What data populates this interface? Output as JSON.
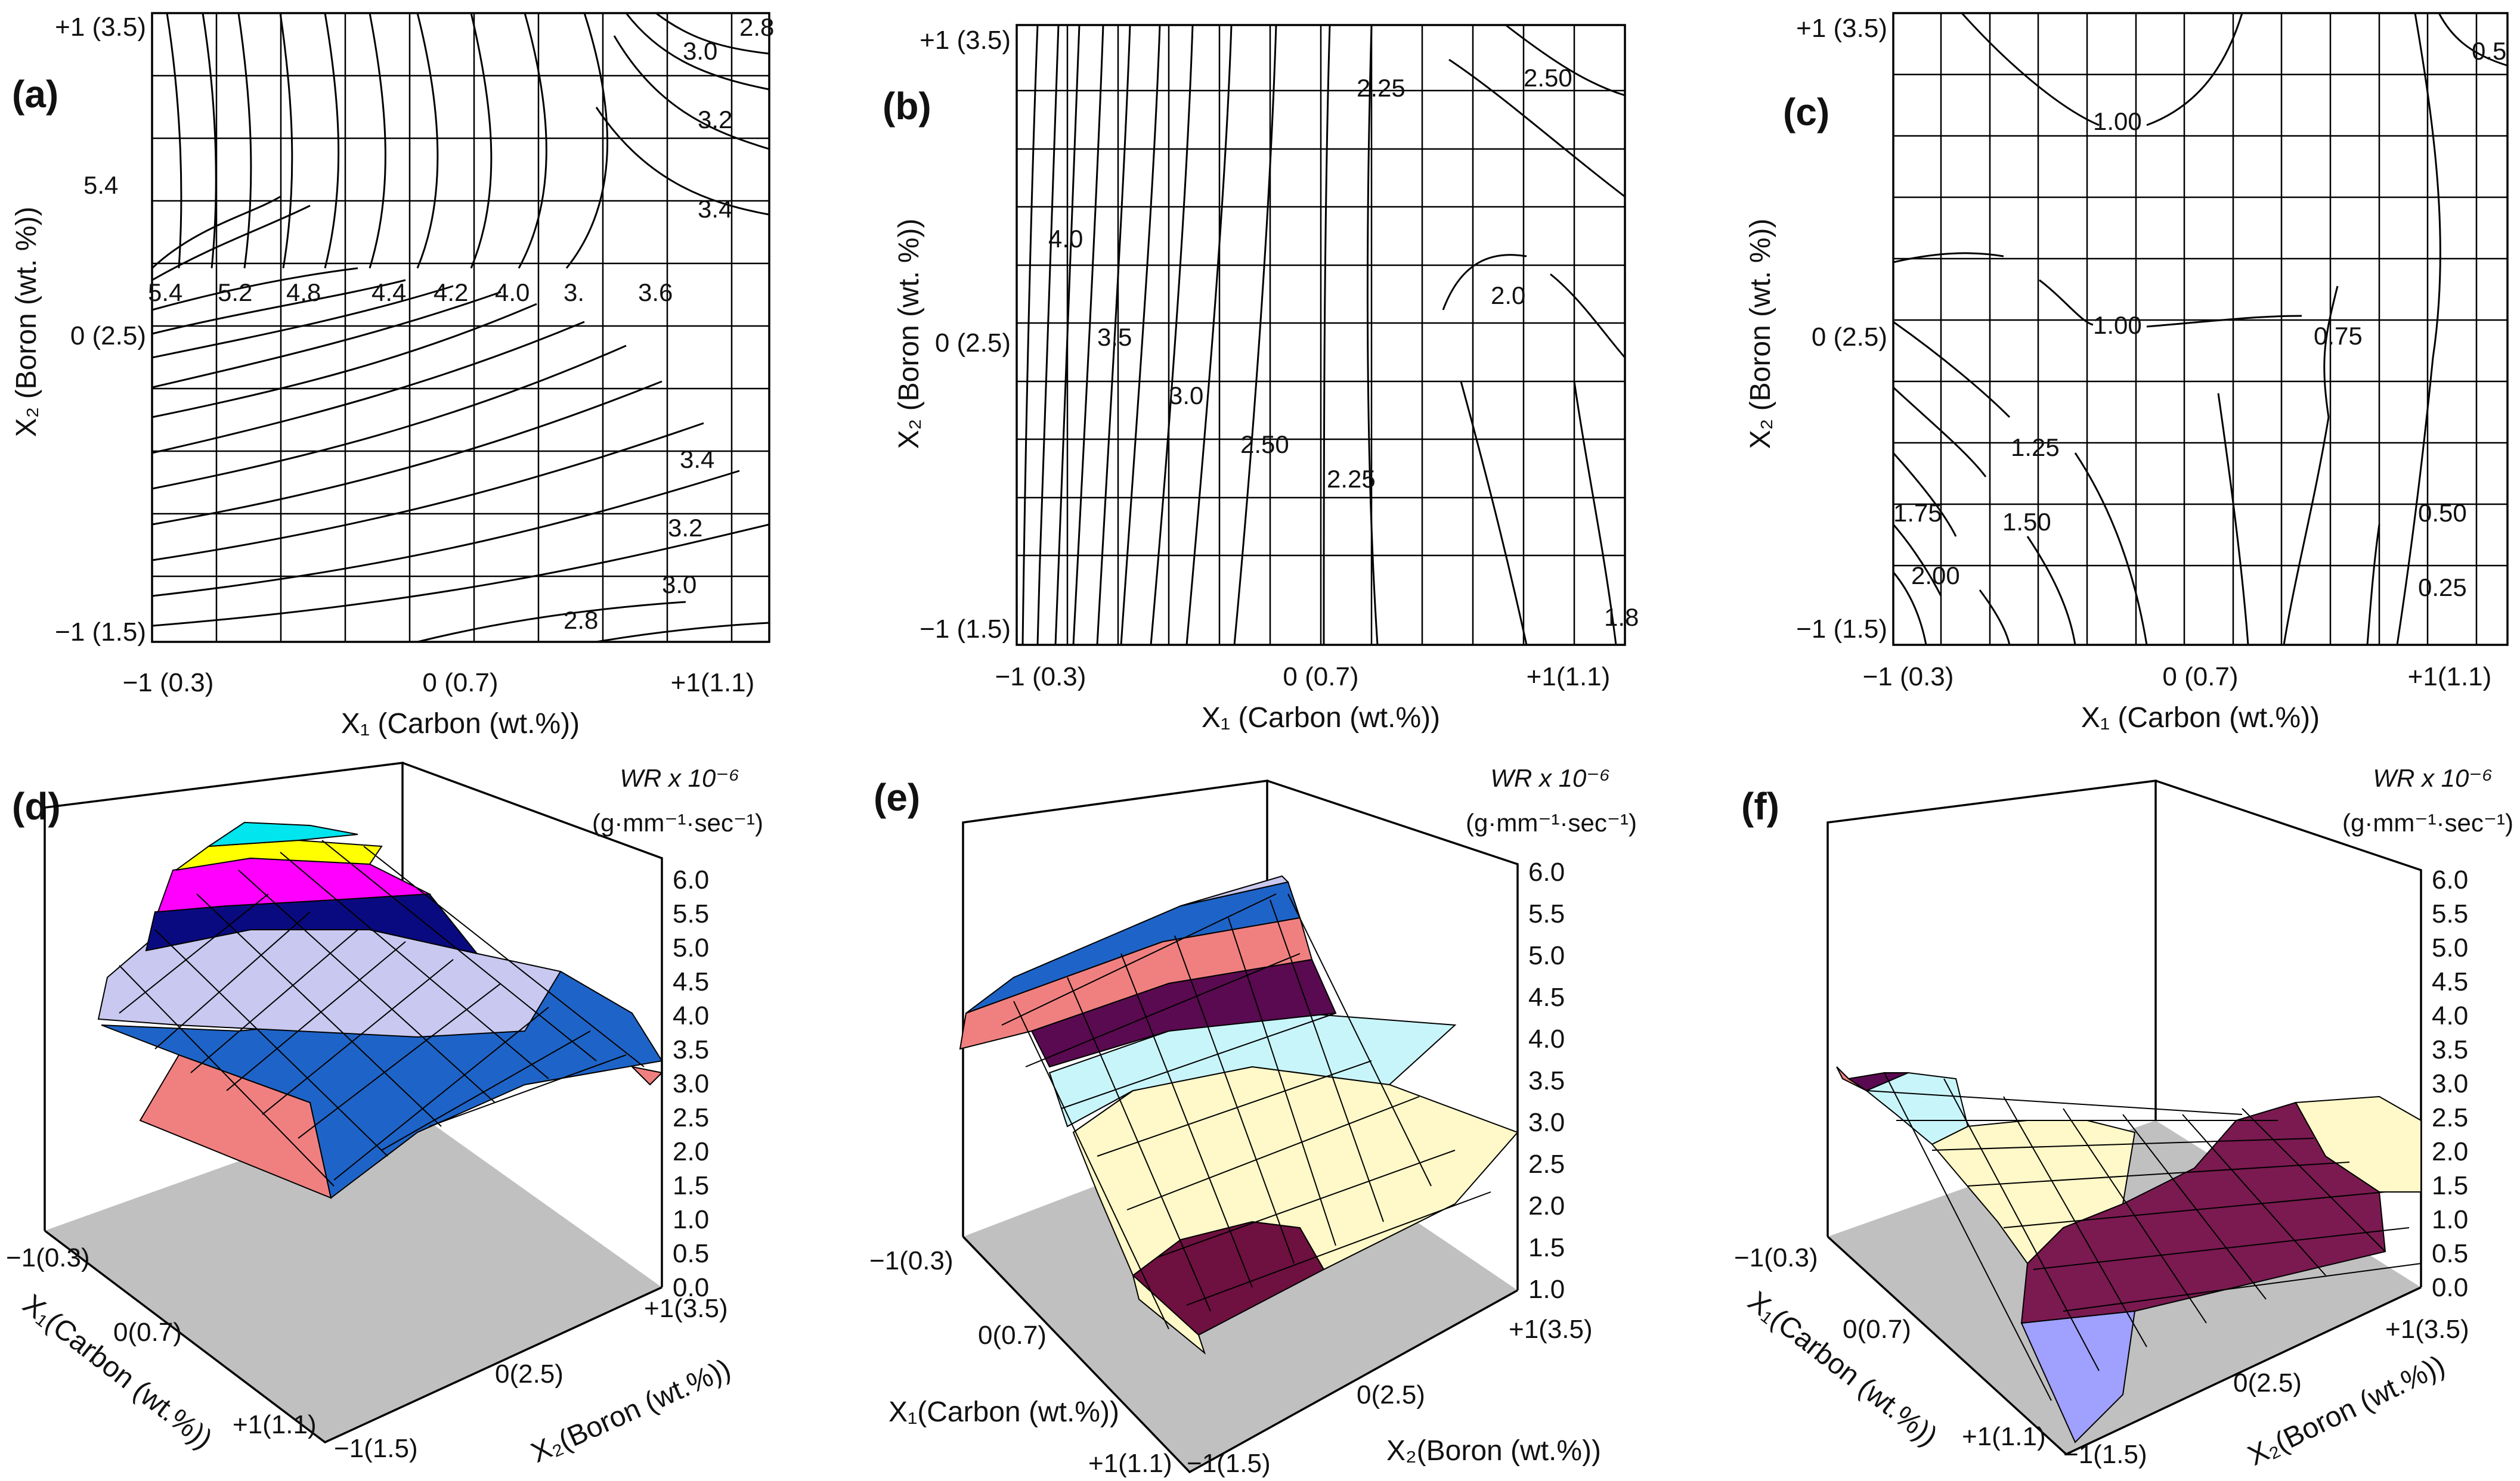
{
  "panels": {
    "a": "(a)",
    "b": "(b)",
    "c": "(c)",
    "d": "(d)",
    "e": "(e)",
    "f": "(f)"
  },
  "contour_axes": {
    "x_title": "X₁ (Carbon (wt.%))",
    "y_title": "X₂ (Boron (wt. %))",
    "x_ticks": [
      "−1 (0.3)",
      "0 (0.7)",
      "+1(1.1)"
    ],
    "y_ticks": [
      "+1 (3.5)",
      "0 (2.5)",
      "−1 (1.5)"
    ]
  },
  "surface_axes": {
    "z_title": "WR x 10⁻⁶",
    "z_unit": "(g·mm⁻¹·sec⁻¹)",
    "x1_title": "X₁(Carbon (wt.%))",
    "x2_title": "X₂(Boron (wt.%))",
    "x1_ticks": [
      "−1(0.3)",
      "0(0.7)",
      "+1(1.1)"
    ],
    "x2_ticks": [
      "−1(1.5)",
      "0(2.5)",
      "+1(3.5)"
    ],
    "z_ticks_d": [
      "0.0",
      "0.5",
      "1.0",
      "1.5",
      "2.0",
      "2.5",
      "3.0",
      "3.5",
      "4.0",
      "4.5",
      "5.0",
      "5.5",
      "6.0"
    ],
    "z_ticks_e": [
      "1.0",
      "1.5",
      "2.0",
      "2.5",
      "3.0",
      "3.5",
      "4.0",
      "4.5",
      "5.0",
      "5.5",
      "6.0"
    ],
    "z_ticks_f": [
      "0.0",
      "0.5",
      "1.0",
      "1.5",
      "2.0",
      "2.5",
      "3.0",
      "3.5",
      "4.0",
      "4.5",
      "5.0",
      "5.5",
      "6.0"
    ]
  },
  "chart_data": [
    {
      "panel": "(a)",
      "type": "contour",
      "xlabel": "X1 (Carbon (wt.%))",
      "ylabel": "X2 (Boron (wt. %))",
      "xlim": [
        -1,
        1
      ],
      "ylim": [
        -1,
        1
      ],
      "contour_labels": [
        {
          "text": "5.4",
          "x": -1.0,
          "y": 0.2
        },
        {
          "text": "5.2",
          "x": -0.73,
          "y": 0.2
        },
        {
          "text": "4.8",
          "x": -0.52,
          "y": 0.2
        },
        {
          "text": "4.4",
          "x": -0.26,
          "y": 0.2
        },
        {
          "text": "4.2",
          "x": -0.1,
          "y": 0.2
        },
        {
          "text": "4.0",
          "x": 0.13,
          "y": 0.2
        },
        {
          "text": "3.",
          "x": 0.36,
          "y": 0.2
        },
        {
          "text": "3.6",
          "x": 0.68,
          "y": 0.2
        },
        {
          "text": "5.4",
          "x": -1.2,
          "y": 0.57
        },
        {
          "text": "3.0",
          "x": 0.85,
          "y": 0.92
        },
        {
          "text": "2.8",
          "x": 1.06,
          "y": 0.99
        },
        {
          "text": "3.2",
          "x": 0.93,
          "y": 0.74
        },
        {
          "text": "3.4",
          "x": 0.93,
          "y": 0.53
        },
        {
          "text": "3.4",
          "x": 0.9,
          "y": -0.38
        },
        {
          "text": "3.2",
          "x": 0.8,
          "y": -0.6
        },
        {
          "text": "3.0",
          "x": 0.85,
          "y": -0.77
        },
        {
          "text": "2.8",
          "x": 0.4,
          "y": -0.92
        }
      ]
    },
    {
      "panel": "(b)",
      "type": "contour",
      "xlabel": "X1 (Carbon (wt.%))",
      "ylabel": "X2 (Boron (wt. %))",
      "xlim": [
        -1,
        1
      ],
      "ylim": [
        -1,
        1
      ],
      "contour_labels": [
        {
          "text": "4.0",
          "x": -0.82,
          "y": 0.33
        },
        {
          "text": "3.5",
          "x": -0.55,
          "y": 0.0
        },
        {
          "text": "3.0",
          "x": -0.32,
          "y": -0.19
        },
        {
          "text": "2.50",
          "x": -0.04,
          "y": -0.34
        },
        {
          "text": "2.25",
          "x": 0.36,
          "y": -0.45
        },
        {
          "text": "2.25",
          "x": 0.38,
          "y": 0.77
        },
        {
          "text": "2.50",
          "x": 0.86,
          "y": 0.79
        },
        {
          "text": "2.0",
          "x": 0.7,
          "y": 0.14
        },
        {
          "text": "1.8",
          "x": 1.04,
          "y": -0.95
        }
      ]
    },
    {
      "panel": "(c)",
      "type": "contour",
      "xlabel": "X1 (Carbon (wt.%))",
      "ylabel": "X2 (Boron (wt. %))",
      "xlim": [
        -1,
        1
      ],
      "ylim": [
        -1,
        1
      ],
      "contour_labels": [
        {
          "text": "1.00",
          "x": -0.15,
          "y": 0.7
        },
        {
          "text": "0.5",
          "x": 0.96,
          "y": 0.9
        },
        {
          "text": "1.00",
          "x": -0.15,
          "y": 0.04
        },
        {
          "text": "0.75",
          "x": 0.71,
          "y": 0.0
        },
        {
          "text": "1.25",
          "x": -0.4,
          "y": -0.37
        },
        {
          "text": "1.75",
          "x": -0.79,
          "y": -0.6
        },
        {
          "text": "1.50",
          "x": -0.45,
          "y": -0.63
        },
        {
          "text": "2.00",
          "x": -0.72,
          "y": -0.8
        },
        {
          "text": "0.50",
          "x": 0.89,
          "y": -0.58
        },
        {
          "text": "0.25",
          "x": 0.92,
          "y": -0.83
        }
      ]
    },
    {
      "panel": "(d)",
      "type": "surface",
      "zlabel": "WR x 10^-6 (g·mm^-1·sec^-1)",
      "zlim": [
        0.0,
        6.0
      ],
      "x1": "X1 (Carbon)",
      "x2": "X2 (Boron)",
      "x1_range": [
        -1,
        1
      ],
      "x2_range": [
        -1,
        1
      ],
      "color_bands": [
        "#f08080",
        "#1e64c8",
        "#c8c8f0",
        "#0a0a80",
        "#ff00ff",
        "#ffff00",
        "#00e5ee"
      ]
    },
    {
      "panel": "(e)",
      "type": "surface",
      "zlabel": "WR x 10^-6 (g·mm^-1·sec^-1)",
      "zlim": [
        1.0,
        6.0
      ],
      "x1": "X1 (Carbon)",
      "x2": "X2 (Boron)",
      "x1_range": [
        -1,
        1
      ],
      "x2_range": [
        -1,
        1
      ],
      "color_bands": [
        "#6e1040",
        "#fff8c8",
        "#c8f5fa",
        "#5a0a50",
        "#f08080",
        "#1e64c8",
        "#c8c8f0"
      ]
    },
    {
      "panel": "(f)",
      "type": "surface",
      "zlabel": "WR x 10^-6 (g·mm^-1·sec^-1)",
      "zlim": [
        0.0,
        6.0
      ],
      "x1": "X1 (Carbon)",
      "x2": "X2 (Boron)",
      "x1_range": [
        -1,
        1
      ],
      "x2_range": [
        -1,
        1
      ],
      "color_bands": [
        "#a0a0ff",
        "#7a1a50",
        "#fff8c8",
        "#c8f5fa",
        "#5a0a50",
        "#f08080"
      ]
    }
  ]
}
